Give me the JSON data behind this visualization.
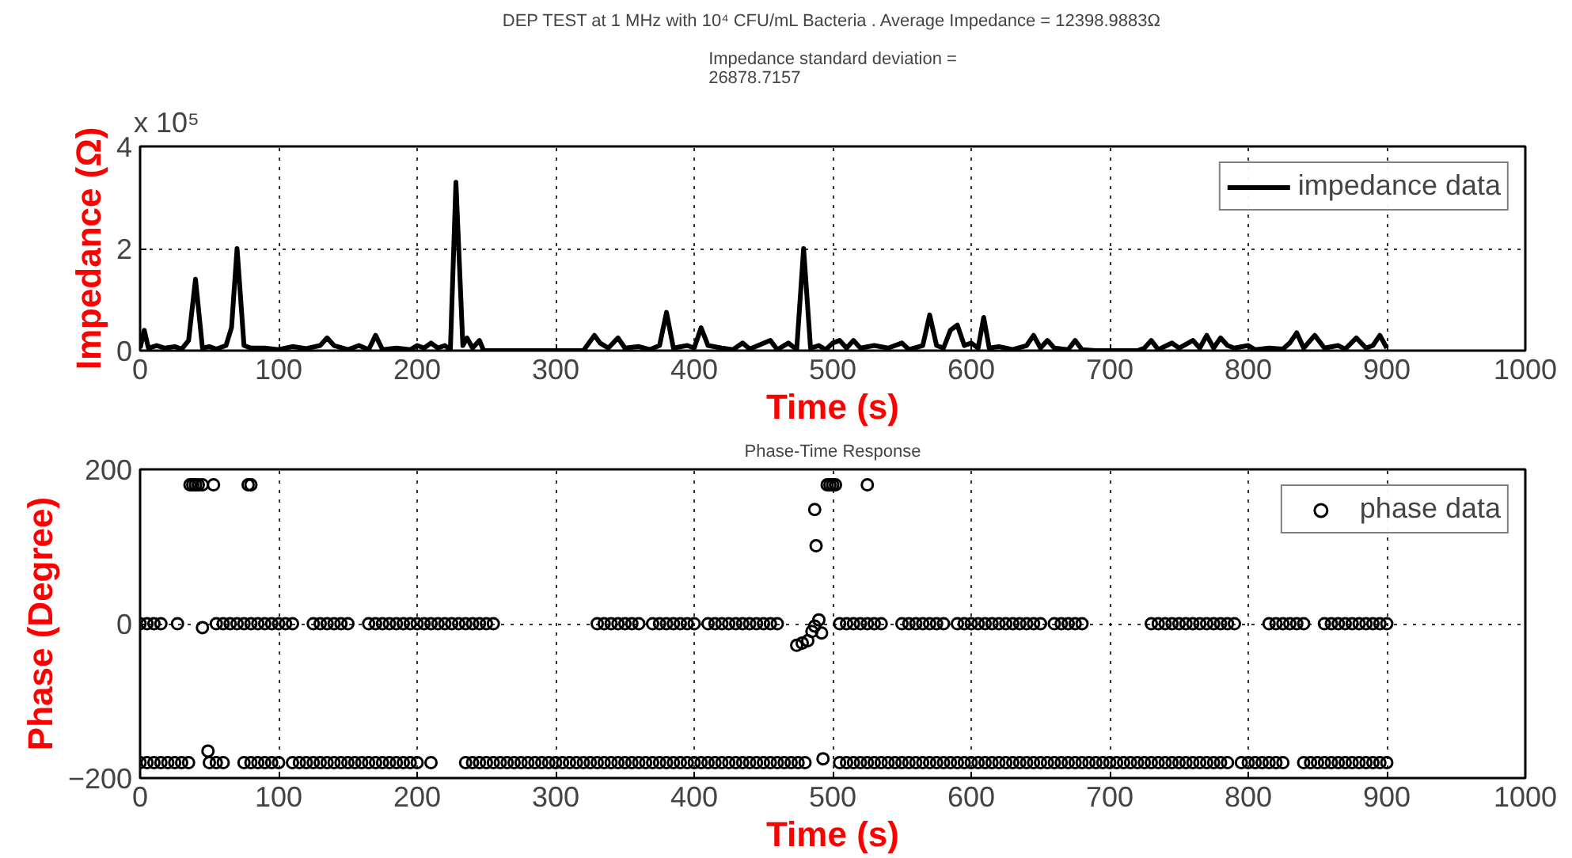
{
  "chart_data": [
    {
      "type": "line",
      "title": "DEP TEST at 1 MHz with 10⁴ CFU/mL Bacteria . Average Impedance = 12398.9883Ω",
      "subtitle": "Impedance standard deviation =\n26878.7157",
      "xlabel": "Time (s)",
      "ylabel": "Impedance (Ω)",
      "annotations": [
        "x 10⁵"
      ],
      "xlim": [
        0,
        1000
      ],
      "xticks": [
        0,
        100,
        200,
        300,
        400,
        500,
        600,
        700,
        800,
        900,
        1000
      ],
      "ylim": [
        0,
        4
      ],
      "yticks": [
        0,
        2,
        4
      ],
      "grid": true,
      "legend": "top right",
      "line_style": "solid",
      "series": [
        {
          "name": "impedance data",
          "color": "#000000",
          "x": [
            0,
            3,
            6,
            12,
            18,
            25,
            30,
            35,
            40,
            45,
            50,
            55,
            62,
            66,
            70,
            75,
            80,
            90,
            100,
            110,
            120,
            130,
            135,
            140,
            150,
            158,
            165,
            170,
            175,
            185,
            195,
            200,
            205,
            210,
            215,
            220,
            224,
            228,
            233,
            236,
            240,
            245,
            248,
            320,
            328,
            332,
            338,
            345,
            350,
            360,
            368,
            375,
            380,
            385,
            395,
            400,
            405,
            410,
            420,
            428,
            435,
            440,
            455,
            460,
            468,
            474,
            479,
            484,
            490,
            495,
            500,
            505,
            510,
            515,
            520,
            530,
            540,
            550,
            555,
            565,
            570,
            575,
            580,
            585,
            590,
            595,
            600,
            605,
            609,
            613,
            620,
            630,
            640,
            645,
            650,
            655,
            660,
            670,
            675,
            680,
            690,
            720,
            725,
            730,
            735,
            745,
            750,
            760,
            765,
            770,
            775,
            780,
            785,
            790,
            800,
            805,
            815,
            825,
            830,
            835,
            840,
            848,
            855,
            865,
            870,
            878,
            885,
            890,
            895,
            900
          ],
          "values": [
            0.05,
            0.4,
            0.05,
            0.1,
            0.05,
            0.08,
            0.03,
            0.2,
            1.4,
            0.05,
            0.08,
            0.03,
            0.1,
            0.45,
            2.0,
            0.1,
            0.05,
            0.05,
            0.02,
            0.08,
            0.04,
            0.1,
            0.25,
            0.1,
            0.02,
            0.1,
            0.02,
            0.3,
            0.02,
            0.05,
            0.02,
            0.1,
            0.05,
            0.15,
            0.05,
            0.1,
            0.02,
            3.3,
            0.1,
            0.25,
            0.05,
            0.2,
            0,
            0,
            0.3,
            0.15,
            0.05,
            0.25,
            0.05,
            0.08,
            0.02,
            0.1,
            0.75,
            0.05,
            0.1,
            0.05,
            0.45,
            0.1,
            0.05,
            0.02,
            0.15,
            0.03,
            0.2,
            0.02,
            0.15,
            0.02,
            2.0,
            0.05,
            0.1,
            0.02,
            0.15,
            0.2,
            0.05,
            0.2,
            0.05,
            0.1,
            0.05,
            0.15,
            0.02,
            0.1,
            0.7,
            0.1,
            0.05,
            0.4,
            0.5,
            0.1,
            0.15,
            0.05,
            0.65,
            0.05,
            0.08,
            0.02,
            0.1,
            0.3,
            0.05,
            0.2,
            0.05,
            0.02,
            0.2,
            0.02,
            0,
            0,
            0.05,
            0.2,
            0.02,
            0.15,
            0.05,
            0.2,
            0.05,
            0.3,
            0.05,
            0.25,
            0.1,
            0.05,
            0.1,
            0.02,
            0.05,
            0.03,
            0.15,
            0.35,
            0.05,
            0.3,
            0.05,
            0.1,
            0.03,
            0.25,
            0.05,
            0.1,
            0.3,
            0.05
          ]
        }
      ]
    },
    {
      "type": "scatter",
      "title": "Phase-Time Response",
      "xlabel": "Time (s)",
      "ylabel": "Phase (Degree)",
      "xlim": [
        0,
        1000
      ],
      "xticks": [
        0,
        100,
        200,
        300,
        400,
        500,
        600,
        700,
        800,
        900,
        1000
      ],
      "ylim": [
        -200,
        200
      ],
      "yticks": [
        -200,
        0,
        200
      ],
      "grid": true,
      "legend": "top right",
      "marker": "circle",
      "series": [
        {
          "name": "phase data",
          "color": "#000000",
          "x": [
            0,
            5,
            10,
            15,
            20,
            25,
            30,
            35,
            50,
            55,
            60,
            75,
            80,
            85,
            90,
            95,
            100,
            110,
            115,
            120,
            125,
            130,
            135,
            140,
            145,
            150,
            155,
            160,
            165,
            170,
            175,
            180,
            185,
            190,
            195,
            200,
            210,
            235,
            240,
            245,
            250,
            255,
            260,
            265,
            270,
            275,
            280,
            285,
            290,
            295,
            300,
            305,
            310,
            315,
            320,
            325,
            330,
            335,
            340,
            345,
            350,
            355,
            360,
            365,
            370,
            375,
            380,
            385,
            390,
            395,
            400,
            405,
            410,
            415,
            420,
            425,
            430,
            435,
            440,
            445,
            450,
            455,
            460,
            465,
            470,
            475,
            480,
            493,
            505,
            510,
            515,
            520,
            525,
            530,
            535,
            540,
            545,
            550,
            555,
            560,
            565,
            570,
            575,
            580,
            585,
            590,
            595,
            600,
            605,
            610,
            615,
            620,
            625,
            630,
            635,
            640,
            645,
            650,
            655,
            660,
            665,
            670,
            675,
            680,
            685,
            690,
            695,
            700,
            705,
            710,
            715,
            720,
            725,
            730,
            735,
            740,
            745,
            750,
            755,
            760,
            765,
            770,
            775,
            780,
            785,
            795,
            800,
            805,
            810,
            815,
            820,
            825,
            840,
            845,
            850,
            855,
            860,
            865,
            870,
            875,
            880,
            885,
            890,
            895,
            900,
            0,
            5,
            10,
            15,
            27,
            45,
            55,
            60,
            65,
            70,
            75,
            80,
            85,
            90,
            95,
            100,
            105,
            110,
            125,
            130,
            135,
            140,
            145,
            150,
            165,
            170,
            175,
            180,
            185,
            190,
            195,
            200,
            205,
            210,
            215,
            220,
            225,
            230,
            235,
            240,
            245,
            250,
            255,
            330,
            335,
            340,
            345,
            350,
            355,
            360,
            370,
            375,
            380,
            385,
            390,
            395,
            400,
            410,
            415,
            420,
            425,
            430,
            435,
            440,
            445,
            450,
            455,
            460,
            474,
            478,
            482,
            485,
            487,
            490,
            492,
            505,
            510,
            515,
            520,
            525,
            530,
            535,
            550,
            555,
            560,
            565,
            570,
            575,
            580,
            590,
            595,
            600,
            605,
            610,
            615,
            620,
            625,
            630,
            635,
            640,
            645,
            650,
            660,
            665,
            670,
            675,
            680,
            730,
            735,
            740,
            745,
            750,
            755,
            760,
            765,
            770,
            775,
            780,
            785,
            790,
            815,
            820,
            825,
            830,
            835,
            840,
            855,
            860,
            865,
            870,
            875,
            880,
            885,
            890,
            895,
            900,
            36,
            38,
            40,
            42,
            45,
            53,
            78,
            80,
            496,
            498,
            500,
            502,
            525,
            487,
            488,
            49
          ],
          "values": [
            -180,
            -180,
            -180,
            -180,
            -180,
            -180,
            -180,
            -180,
            -180,
            -180,
            -180,
            -180,
            -180,
            -180,
            -180,
            -180,
            -180,
            -180,
            -180,
            -180,
            -180,
            -180,
            -180,
            -180,
            -180,
            -180,
            -180,
            -180,
            -180,
            -180,
            -180,
            -180,
            -180,
            -180,
            -180,
            -180,
            -180,
            -180,
            -180,
            -180,
            -180,
            -180,
            -180,
            -180,
            -180,
            -180,
            -180,
            -180,
            -180,
            -180,
            -180,
            -180,
            -180,
            -180,
            -180,
            -180,
            -180,
            -180,
            -180,
            -180,
            -180,
            -180,
            -180,
            -180,
            -180,
            -180,
            -180,
            -180,
            -180,
            -180,
            -180,
            -180,
            -180,
            -180,
            -180,
            -180,
            -180,
            -180,
            -180,
            -180,
            -180,
            -180,
            -180,
            -180,
            -180,
            -180,
            -180,
            -175,
            -180,
            -180,
            -180,
            -180,
            -180,
            -180,
            -180,
            -180,
            -180,
            -180,
            -180,
            -180,
            -180,
            -180,
            -180,
            -180,
            -180,
            -180,
            -180,
            -180,
            -180,
            -180,
            -180,
            -180,
            -180,
            -180,
            -180,
            -180,
            -180,
            -180,
            -180,
            -180,
            -180,
            -180,
            -180,
            -180,
            -180,
            -180,
            -180,
            -180,
            -180,
            -180,
            -180,
            -180,
            -180,
            -180,
            -180,
            -180,
            -180,
            -180,
            -180,
            -180,
            -180,
            -180,
            -180,
            -180,
            -180,
            -180,
            -180,
            -180,
            -180,
            -180,
            -180,
            -180,
            -180,
            -180,
            -180,
            -180,
            -180,
            -180,
            -180,
            -180,
            -180,
            -180,
            -180,
            -180,
            -180,
            0,
            0,
            0,
            0,
            0,
            -5,
            0,
            0,
            0,
            0,
            0,
            0,
            0,
            0,
            0,
            0,
            0,
            0,
            0,
            0,
            0,
            0,
            0,
            0,
            0,
            0,
            0,
            0,
            0,
            0,
            0,
            0,
            0,
            0,
            0,
            0,
            0,
            0,
            0,
            0,
            0,
            0,
            0,
            0,
            0,
            0,
            0,
            0,
            0,
            0,
            0,
            0,
            0,
            0,
            0,
            0,
            0,
            0,
            0,
            0,
            0,
            0,
            0,
            0,
            0,
            0,
            0,
            0,
            -28,
            -25,
            -22,
            -10,
            -3,
            5,
            -12,
            0,
            0,
            0,
            0,
            0,
            0,
            0,
            0,
            0,
            0,
            0,
            0,
            0,
            0,
            0,
            0,
            0,
            0,
            0,
            0,
            0,
            0,
            0,
            0,
            0,
            0,
            0,
            0,
            0,
            0,
            0,
            0,
            0,
            0,
            0,
            0,
            0,
            0,
            0,
            0,
            0,
            0,
            0,
            0,
            0,
            0,
            0,
            0,
            0,
            0,
            0,
            0,
            0,
            0,
            0,
            0,
            0,
            0,
            0,
            0,
            0,
            180,
            180,
            180,
            180,
            180,
            180,
            180,
            180,
            180,
            180,
            180,
            180,
            180,
            148,
            101,
            -165
          ]
        }
      ]
    }
  ]
}
